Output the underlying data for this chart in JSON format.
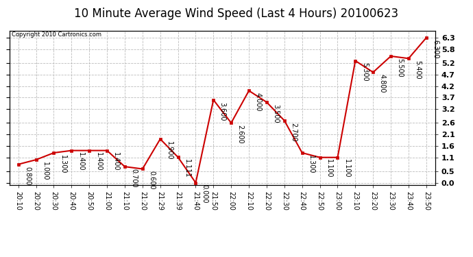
{
  "title": "10 Minute Average Wind Speed (Last 4 Hours) 20100623",
  "copyright": "Copyright 2010 Cartronics.com",
  "x_labels": [
    "20:10",
    "20:20",
    "20:30",
    "20:40",
    "20:50",
    "21:00",
    "21:10",
    "21:20",
    "21:29",
    "21:39",
    "21:40",
    "21:50",
    "22:00",
    "22:10",
    "22:20",
    "22:30",
    "22:40",
    "22:50",
    "23:00",
    "23:10",
    "23:20",
    "23:30",
    "23:40",
    "23:50"
  ],
  "y_values": [
    0.8,
    1.0,
    1.3,
    1.4,
    1.4,
    1.4,
    0.7,
    0.6,
    1.9,
    1.111,
    0.0,
    3.6,
    2.6,
    4.0,
    3.5,
    2.7,
    1.3,
    1.1,
    1.1,
    5.3,
    4.8,
    5.5,
    5.4,
    6.3
  ],
  "y_labels": [
    0.0,
    0.5,
    1.1,
    1.6,
    2.1,
    2.6,
    3.2,
    3.7,
    4.2,
    4.7,
    5.2,
    5.8,
    6.3
  ],
  "line_color": "#cc0000",
  "marker_color": "#cc0000",
  "bg_color": "#ffffff",
  "grid_color": "#bbbbbb",
  "title_fontsize": 12,
  "annotation_fontsize": 7,
  "ylim_min": -0.1,
  "ylim_max": 6.6
}
